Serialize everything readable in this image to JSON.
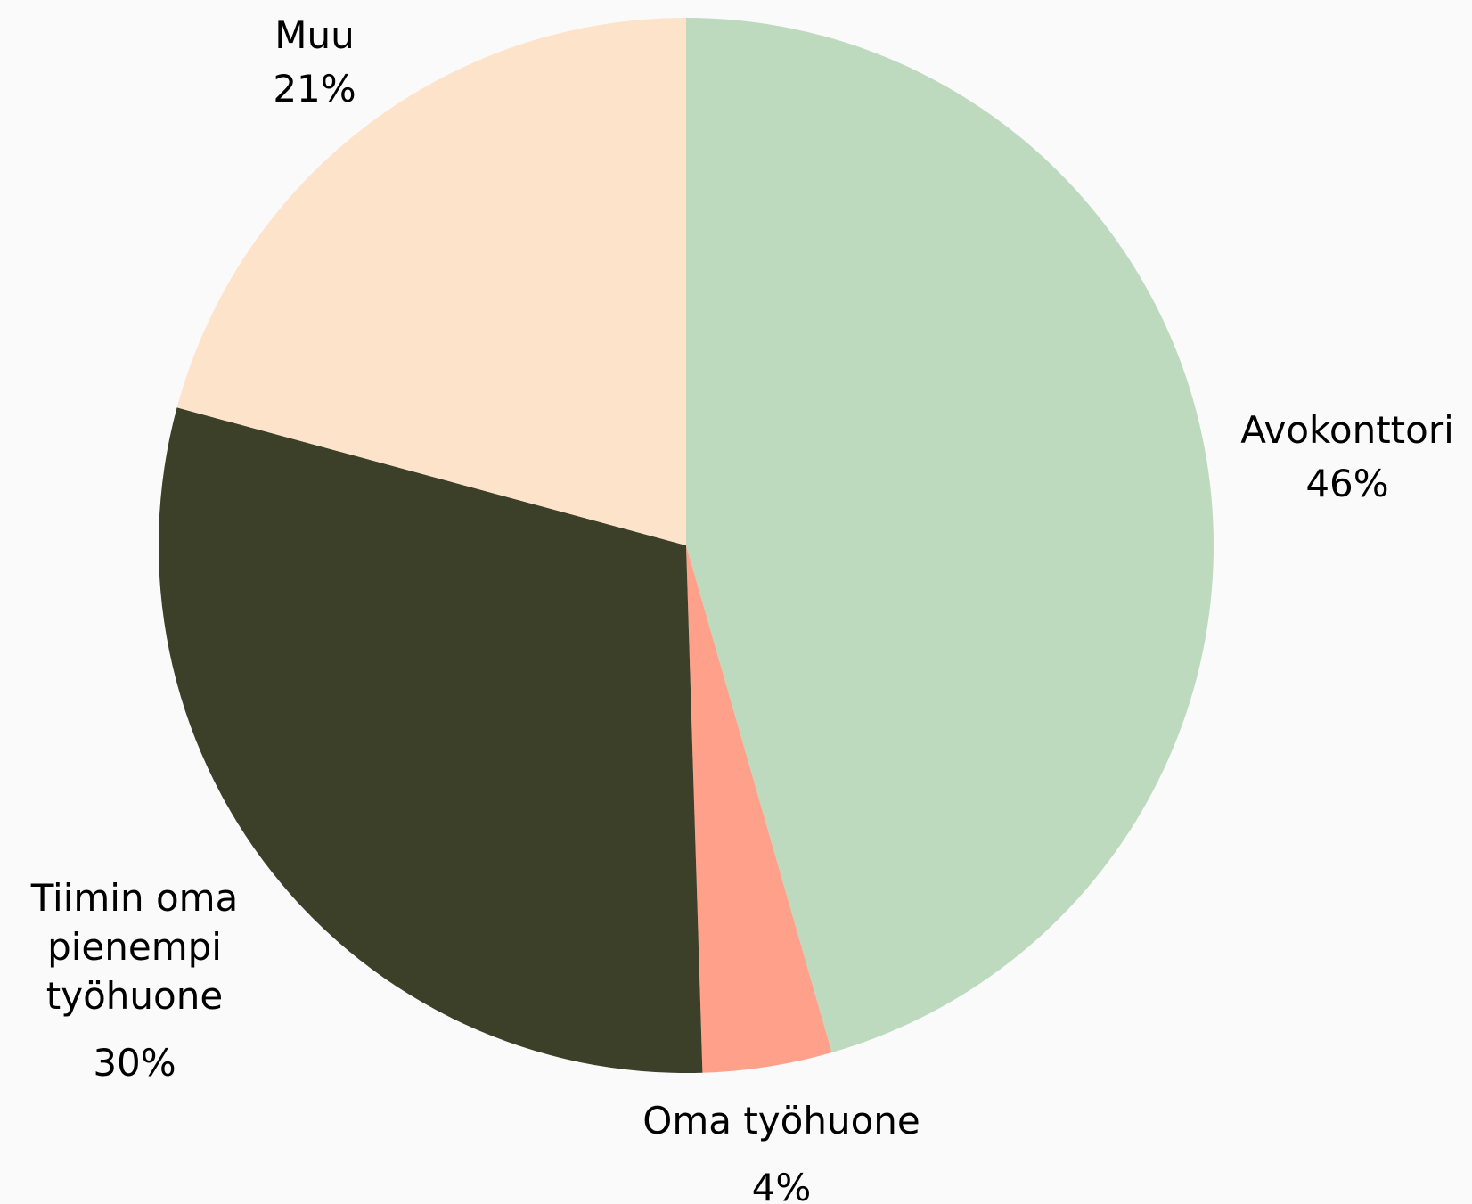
{
  "chart_data": {
    "type": "pie",
    "categories": [
      "Avokonttori",
      "Oma työhuone",
      "Tiimin oma pienempi työhuone",
      "Muu"
    ],
    "values": [
      46,
      4,
      30,
      21
    ],
    "value_labels": [
      "46%",
      "4%",
      "30%",
      "21%"
    ],
    "colors": [
      "#bddabe",
      "#ffa08a",
      "#3d4029",
      "#fde3c9"
    ]
  }
}
